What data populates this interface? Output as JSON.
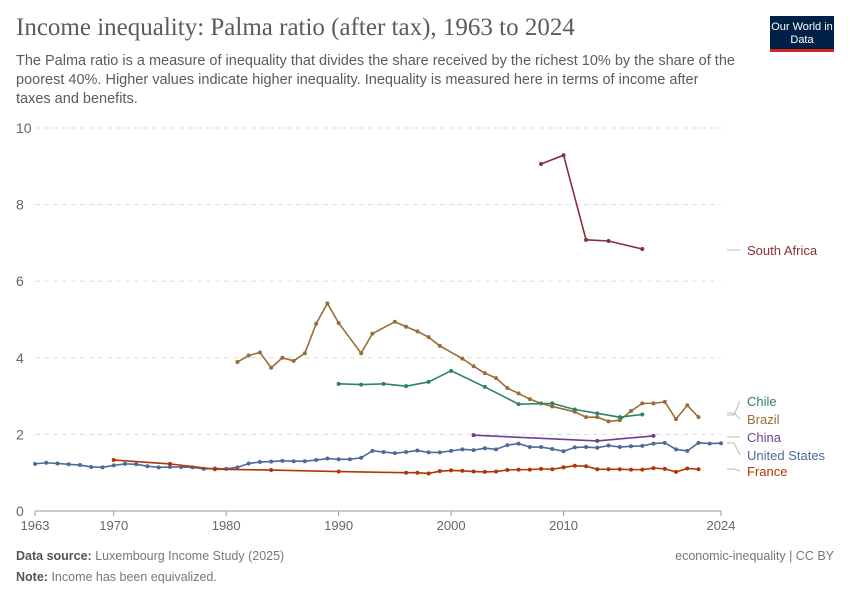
{
  "title": "Income inequality: Palma ratio (after tax), 1963 to 2024",
  "subtitle": "The Palma ratio is a measure of inequality that divides the share received by the richest 10% by the share of the poorest 40%. Higher values indicate higher inequality. Inequality is measured here in terms of income after taxes and benefits.",
  "logo": "Our World in Data",
  "footer": {
    "source_label": "Data source:",
    "source": "Luxembourg Income Study (2025)",
    "note_label": "Note:",
    "note": "Income has been equivalized.",
    "right": "economic-inequality | CC BY"
  },
  "chart_data": {
    "type": "line",
    "title": "Income inequality: Palma ratio (after tax), 1963 to 2024",
    "xlim": [
      1963,
      2024
    ],
    "ylim": [
      0,
      10
    ],
    "x_ticks": [
      1963,
      1970,
      1980,
      1990,
      2000,
      2010,
      2024
    ],
    "y_ticks": [
      0,
      2,
      4,
      6,
      8,
      10
    ],
    "grid": "horizontal dashed",
    "legend": "right, inline labels",
    "series": [
      {
        "name": "South Africa",
        "color": "#883039",
        "x": [
          2008,
          2010,
          2012,
          2014,
          2017
        ],
        "y": [
          9.06,
          9.29,
          7.08,
          7.05,
          6.84
        ]
      },
      {
        "name": "Brazil",
        "color": "#996D39",
        "x": [
          1981,
          1982,
          1983,
          1984,
          1985,
          1986,
          1987,
          1988,
          1989,
          1990,
          1992,
          1993,
          1995,
          1996,
          1997,
          1998,
          1999,
          2001,
          2002,
          2003,
          2004,
          2005,
          2006,
          2007,
          2008,
          2009,
          2011,
          2012,
          2013,
          2014,
          2015,
          2016,
          2017,
          2018,
          2019,
          2020,
          2021,
          2022
        ],
        "y": [
          3.89,
          4.06,
          4.14,
          3.74,
          4.0,
          3.92,
          4.12,
          4.89,
          5.42,
          4.91,
          4.12,
          4.63,
          4.94,
          4.81,
          4.69,
          4.54,
          4.31,
          3.98,
          3.78,
          3.6,
          3.47,
          3.21,
          3.07,
          2.92,
          2.81,
          2.73,
          2.59,
          2.45,
          2.45,
          2.34,
          2.37,
          2.61,
          2.81,
          2.81,
          2.85,
          2.4,
          2.76,
          2.45
        ]
      },
      {
        "name": "Chile",
        "color": "#2C8465",
        "x": [
          1990,
          1992,
          1994,
          1996,
          1998,
          2000,
          2003,
          2006,
          2009,
          2011,
          2013,
          2015,
          2017
        ],
        "y": [
          3.32,
          3.3,
          3.32,
          3.26,
          3.37,
          3.66,
          3.24,
          2.79,
          2.81,
          2.65,
          2.55,
          2.45,
          2.52
        ]
      },
      {
        "name": "China",
        "color": "#6D3E91",
        "x": [
          2002,
          2013,
          2018
        ],
        "y": [
          1.98,
          1.83,
          1.96
        ]
      },
      {
        "name": "United States",
        "color": "#4C6A9C",
        "x": [
          1963,
          1964,
          1965,
          1966,
          1967,
          1968,
          1969,
          1970,
          1971,
          1972,
          1973,
          1974,
          1975,
          1976,
          1977,
          1978,
          1979,
          1980,
          1981,
          1982,
          1983,
          1984,
          1985,
          1986,
          1987,
          1988,
          1989,
          1990,
          1991,
          1992,
          1993,
          1994,
          1995,
          1996,
          1997,
          1998,
          1999,
          2000,
          2001,
          2002,
          2003,
          2004,
          2005,
          2006,
          2007,
          2008,
          2009,
          2010,
          2011,
          2012,
          2013,
          2014,
          2015,
          2016,
          2017,
          2018,
          2019,
          2020,
          2021,
          2022,
          2023,
          2024
        ],
        "y": [
          1.23,
          1.26,
          1.24,
          1.22,
          1.2,
          1.15,
          1.14,
          1.19,
          1.23,
          1.22,
          1.17,
          1.14,
          1.15,
          1.15,
          1.14,
          1.1,
          1.11,
          1.1,
          1.14,
          1.24,
          1.28,
          1.29,
          1.31,
          1.3,
          1.3,
          1.33,
          1.37,
          1.35,
          1.35,
          1.39,
          1.57,
          1.54,
          1.51,
          1.54,
          1.58,
          1.53,
          1.53,
          1.57,
          1.61,
          1.59,
          1.64,
          1.61,
          1.72,
          1.76,
          1.67,
          1.67,
          1.62,
          1.56,
          1.66,
          1.67,
          1.65,
          1.71,
          1.67,
          1.69,
          1.7,
          1.76,
          1.78,
          1.61,
          1.57,
          1.78,
          1.76,
          1.77
        ]
      },
      {
        "name": "France",
        "color": "#B13507",
        "x": [
          1970,
          1975,
          1979,
          1984,
          1990,
          1996,
          1997,
          1998,
          1999,
          2000,
          2001,
          2002,
          2003,
          2004,
          2005,
          2006,
          2007,
          2008,
          2009,
          2010,
          2011,
          2012,
          2013,
          2014,
          2015,
          2016,
          2017,
          2018,
          2019,
          2020,
          2021,
          2022
        ],
        "y": [
          1.33,
          1.23,
          1.09,
          1.07,
          1.03,
          1.0,
          1.0,
          0.98,
          1.04,
          1.06,
          1.05,
          1.03,
          1.02,
          1.03,
          1.07,
          1.08,
          1.08,
          1.1,
          1.09,
          1.14,
          1.18,
          1.17,
          1.09,
          1.09,
          1.09,
          1.08,
          1.08,
          1.12,
          1.1,
          1.02,
          1.11,
          1.09
        ]
      }
    ]
  }
}
